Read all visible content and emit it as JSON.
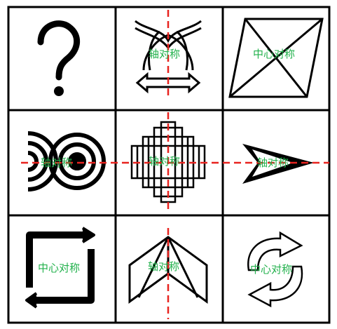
{
  "cells": [
    {
      "id": "r1c1",
      "symbol": "question-mark",
      "label": ""
    },
    {
      "id": "r1c2",
      "symbol": "interlocked-arches-with-arrows",
      "label": "轴对称"
    },
    {
      "id": "r1c3",
      "symbol": "parallelogram-with-diagonals",
      "label": "中心对称"
    },
    {
      "id": "r2c1",
      "symbol": "double-concentric-circles",
      "label": "轴对称"
    },
    {
      "id": "r2c2",
      "symbol": "stepped-cross-pattern",
      "label": "轴对称"
    },
    {
      "id": "r2c3",
      "symbol": "arrowhead",
      "label": "轴对称"
    },
    {
      "id": "r3c1",
      "symbol": "square-frame-with-arrows",
      "label": "中心对称"
    },
    {
      "id": "r3c2",
      "symbol": "folded-paper-shape",
      "label": "轴对称"
    },
    {
      "id": "r3c3",
      "symbol": "circular-arrows",
      "label": "中心对称"
    }
  ],
  "colors": {
    "grid": "#000000",
    "symmetry_axis": "#e8231f",
    "label": "#22b14c"
  }
}
